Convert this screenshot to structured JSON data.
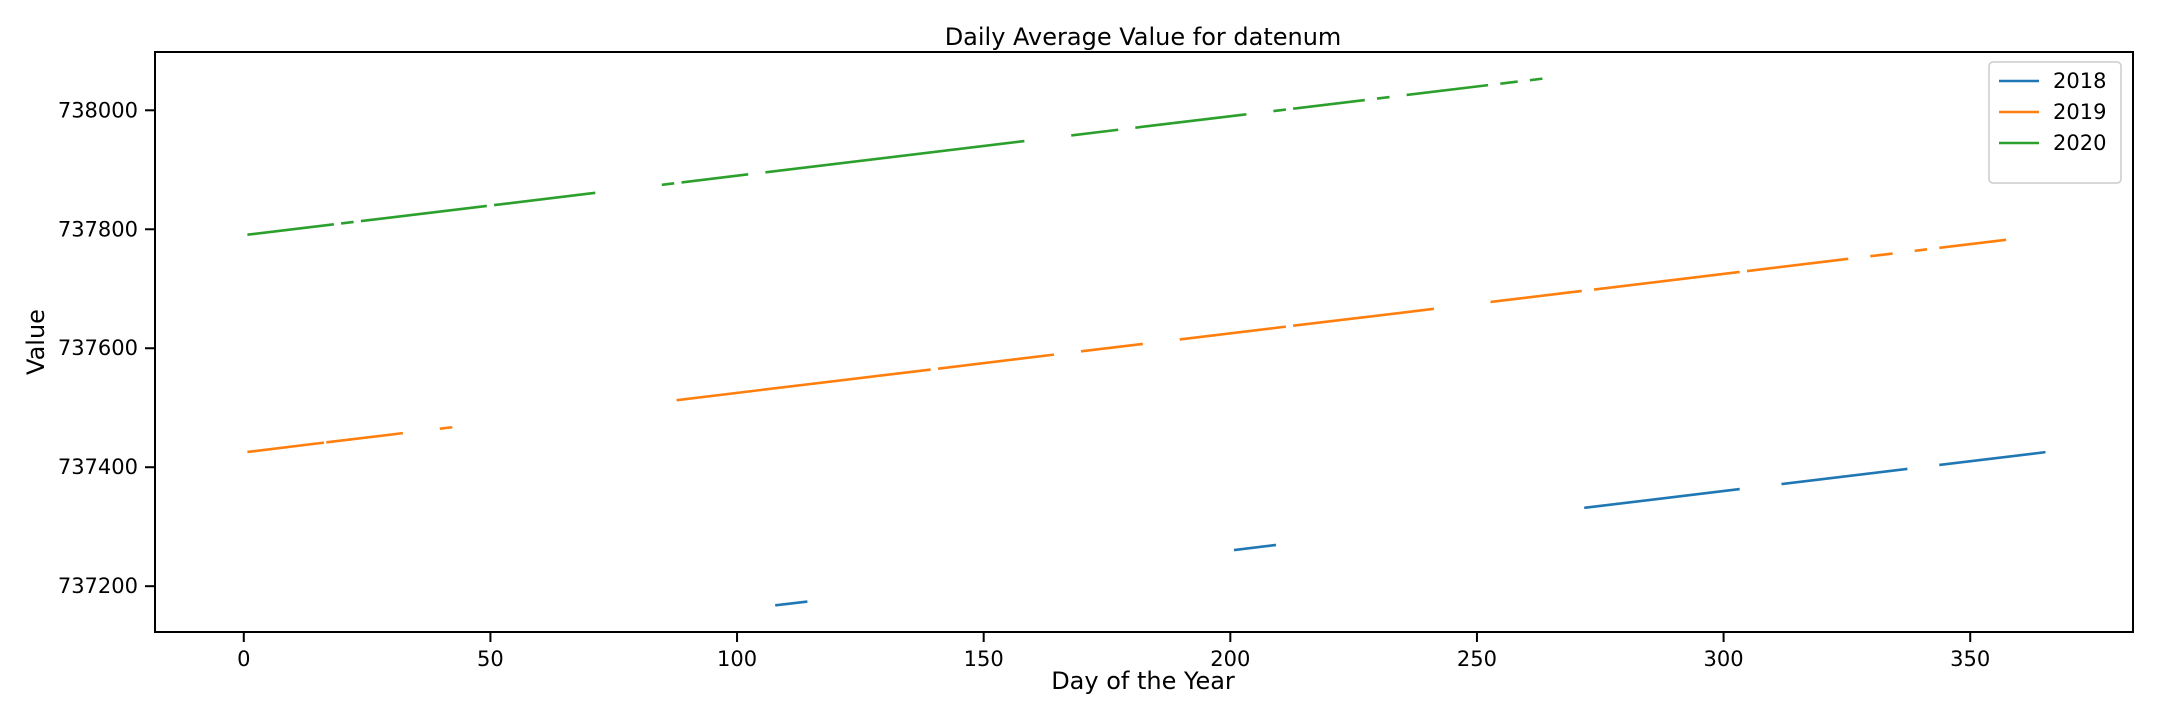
{
  "chart_data": {
    "type": "line",
    "title": "Daily Average Value for datenum",
    "xlabel": "Day of the Year",
    "ylabel": "Value",
    "xlim": [
      -18,
      383
    ],
    "ylim": [
      737123,
      738098
    ],
    "xticks": [
      0,
      50,
      100,
      150,
      200,
      250,
      300,
      350
    ],
    "yticks": [
      737200,
      737400,
      737600,
      737800,
      738000
    ],
    "grid": false,
    "legend": "top-right",
    "series": [
      {
        "name": "2018",
        "color": "#1f77b4",
        "segments": [
          [
            [
              108,
              737168
            ],
            [
              114,
              737174
            ]
          ],
          [
            [
              201,
              737261
            ],
            [
              209,
              737269
            ]
          ],
          [
            [
              272,
              737332
            ],
            [
              303,
              737363
            ]
          ],
          [
            [
              312,
              737372
            ],
            [
              337,
              737397
            ]
          ],
          [
            [
              344,
              737404
            ],
            [
              365,
              737425
            ]
          ]
        ]
      },
      {
        "name": "2019",
        "color": "#ff7f0e",
        "segments": [
          [
            [
              1,
              737426
            ],
            [
              16,
              737441
            ]
          ],
          [
            [
              17,
              737442
            ],
            [
              32,
              737457
            ]
          ],
          [
            [
              40,
              737465
            ],
            [
              42,
              737467
            ]
          ],
          [
            [
              88,
              737513
            ],
            [
              139,
              737564
            ]
          ],
          [
            [
              141,
              737566
            ],
            [
              164,
              737589
            ]
          ],
          [
            [
              170,
              737595
            ],
            [
              182,
              737607
            ]
          ],
          [
            [
              190,
              737615
            ],
            [
              211,
              737636
            ]
          ],
          [
            [
              213,
              737638
            ],
            [
              241,
              737666
            ]
          ],
          [
            [
              253,
              737678
            ],
            [
              271,
              737696
            ]
          ],
          [
            [
              274,
              737699
            ],
            [
              303,
              737728
            ]
          ],
          [
            [
              305,
              737730
            ],
            [
              325,
              737750
            ]
          ],
          [
            [
              330,
              737755
            ],
            [
              334,
              737759
            ]
          ],
          [
            [
              339,
              737764
            ],
            [
              341,
              737766
            ]
          ],
          [
            [
              344,
              737769
            ],
            [
              357,
              737782
            ]
          ]
        ]
      },
      {
        "name": "2020",
        "color": "#2ca02c",
        "segments": [
          [
            [
              1,
              737791
            ],
            [
              18,
              737808
            ]
          ],
          [
            [
              20,
              737810
            ],
            [
              22,
              737812
            ]
          ],
          [
            [
              24,
              737814
            ],
            [
              49,
              737839
            ]
          ],
          [
            [
              51,
              737841
            ],
            [
              71,
              737861
            ]
          ],
          [
            [
              85,
              737875
            ],
            [
              87,
              737877
            ]
          ],
          [
            [
              89,
              737879
            ],
            [
              102,
              737892
            ]
          ],
          [
            [
              106,
              737896
            ],
            [
              158,
              737948
            ]
          ],
          [
            [
              168,
              737958
            ],
            [
              177,
              737967
            ]
          ],
          [
            [
              181,
              737971
            ],
            [
              203,
              737993
            ]
          ],
          [
            [
              209,
              737999
            ],
            [
              211,
              738001
            ]
          ],
          [
            [
              213,
              738003
            ],
            [
              227,
              738017
            ]
          ],
          [
            [
              230,
              738020
            ],
            [
              232,
              738022
            ]
          ],
          [
            [
              236,
              738026
            ],
            [
              252,
              738042
            ]
          ],
          [
            [
              255,
              738045
            ],
            [
              258,
              738048
            ]
          ],
          [
            [
              261,
              738051
            ],
            [
              263,
              738053
            ]
          ]
        ]
      }
    ]
  }
}
